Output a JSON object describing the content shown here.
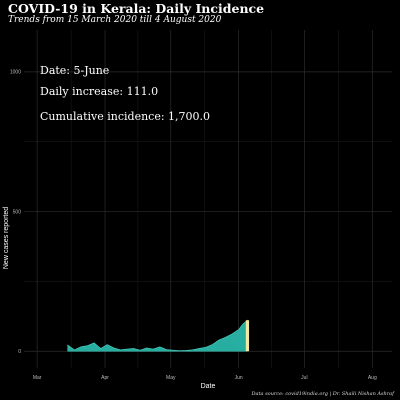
{
  "title": "COVID-19 in Kerala: Daily Incidence",
  "subtitle": "Trends from 15 March 2020 till 4 August 2020",
  "caption": "Data source: covid19india.org | Dr. Shaili Nishan Ashraf",
  "annotation": {
    "date": "Date: 5-June",
    "daily": "Daily increase: 111.0",
    "cumulative": "Cumulative incidence: 1,700.0"
  },
  "colors": {
    "background": "#000000",
    "area_fill": "#2ab7a9",
    "area_stroke": "#4fd4c4",
    "highlight": "#f3e8a0",
    "grid": "#1e1e1e",
    "text": "#ffffff"
  },
  "chart_data": {
    "type": "area",
    "title": "COVID-19 in Kerala: Daily Incidence",
    "subtitle": "Trends from 15 March 2020 till 4 August 2020",
    "xlabel": "Date",
    "ylabel": "New cases reported",
    "x_range": [
      "2020-02-24",
      "2020-08-10"
    ],
    "ylim": [
      -60,
      1150
    ],
    "x_ticks": [
      {
        "date": "2020-03-01",
        "label": "Mar"
      },
      {
        "date": "2020-04-01",
        "label": "Apr"
      },
      {
        "date": "2020-05-01",
        "label": "May"
      },
      {
        "date": "2020-06-01",
        "label": "Jun"
      },
      {
        "date": "2020-07-01",
        "label": "Jul"
      },
      {
        "date": "2020-08-01",
        "label": "Aug"
      }
    ],
    "y_ticks": [
      0,
      500,
      1000
    ],
    "grid": true,
    "highlight_date": "2020-06-05",
    "series": [
      {
        "x": [
          "2020-03-15",
          "2020-03-18",
          "2020-03-21",
          "2020-03-24",
          "2020-03-27",
          "2020-03-30",
          "2020-04-02",
          "2020-04-05",
          "2020-04-08",
          "2020-04-11",
          "2020-04-14",
          "2020-04-17",
          "2020-04-20",
          "2020-04-23",
          "2020-04-26",
          "2020-04-29",
          "2020-05-02",
          "2020-05-05",
          "2020-05-08",
          "2020-05-11",
          "2020-05-14",
          "2020-05-17",
          "2020-05-20",
          "2020-05-23",
          "2020-05-26",
          "2020-05-29",
          "2020-06-01",
          "2020-06-03",
          "2020-06-05"
        ],
        "values": [
          22,
          5,
          16,
          20,
          30,
          10,
          24,
          12,
          5,
          8,
          10,
          4,
          12,
          8,
          16,
          6,
          4,
          2,
          3,
          5,
          10,
          14,
          24,
          40,
          50,
          62,
          78,
          98,
          111
        ]
      }
    ]
  }
}
